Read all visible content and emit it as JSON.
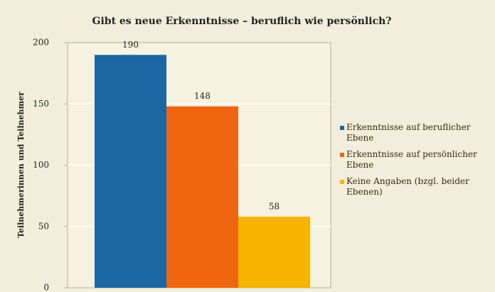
{
  "chart_data": {
    "type": "bar",
    "title": "Gibt es neue Erkenntnisse – beruflich wie persönlich?",
    "ylabel": "Teilnehmerinnen und Teilnehmer",
    "categories": [
      null
    ],
    "series": [
      {
        "name": "Erkenntnisse auf beruflicher Ebene",
        "color": "#1b67a3",
        "values": [
          190
        ]
      },
      {
        "name": "Erkenntnisse auf persönlicher Ebene",
        "color": "#ef6510",
        "values": [
          148
        ]
      },
      {
        "name": "Keine Angaben (bzgl. beider Ebenen)",
        "color": "#f6b300",
        "values": [
          58
        ]
      }
    ],
    "ylim": [
      0,
      200
    ],
    "yticks": [
      0,
      50,
      100,
      150,
      200
    ],
    "grid": true,
    "legend": "right"
  }
}
